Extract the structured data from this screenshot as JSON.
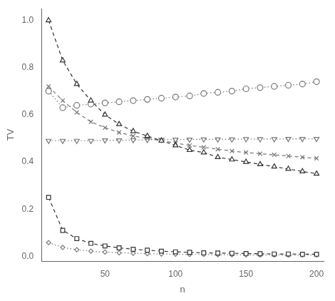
{
  "chart_data": {
    "type": "line",
    "x_label": "n",
    "y_label": "TV",
    "x": [
      10,
      20,
      30,
      40,
      50,
      60,
      70,
      80,
      90,
      100,
      110,
      120,
      130,
      140,
      150,
      160,
      170,
      180,
      190,
      200
    ],
    "series": [
      {
        "color": "#333333",
        "marker": "triangle-up",
        "line_style": "dashed",
        "values": [
          1.0,
          0.83,
          0.73,
          0.66,
          0.6,
          0.56,
          0.53,
          0.51,
          0.49,
          0.47,
          0.45,
          0.44,
          0.42,
          0.41,
          0.4,
          0.39,
          0.38,
          0.37,
          0.36,
          0.35
        ]
      },
      {
        "color": "#777777",
        "marker": "circle",
        "line_style": "dotted",
        "values": [
          0.7,
          0.63,
          0.64,
          0.645,
          0.65,
          0.655,
          0.66,
          0.665,
          0.67,
          0.675,
          0.68,
          0.69,
          0.695,
          0.7,
          0.71,
          0.715,
          0.72,
          0.725,
          0.73,
          0.74
        ]
      },
      {
        "color": "#777777",
        "marker": "cross",
        "line_style": "dashed",
        "values": [
          0.72,
          0.66,
          0.61,
          0.57,
          0.545,
          0.525,
          0.51,
          0.5,
          0.49,
          0.48,
          0.47,
          0.462,
          0.454,
          0.446,
          0.44,
          0.435,
          0.43,
          0.425,
          0.42,
          0.415
        ]
      },
      {
        "color": "#777777",
        "marker": "triangle-down",
        "line_style": "dotted",
        "values": [
          0.49,
          0.49,
          0.49,
          0.49,
          0.492,
          0.492,
          0.493,
          0.494,
          0.494,
          0.495,
          0.495,
          0.496,
          0.496,
          0.496,
          0.497,
          0.497,
          0.497,
          0.498,
          0.498,
          0.498
        ]
      },
      {
        "color": "#333333",
        "marker": "square",
        "line_style": "dashed",
        "values": [
          0.25,
          0.11,
          0.075,
          0.055,
          0.044,
          0.036,
          0.03,
          0.026,
          0.022,
          0.019,
          0.017,
          0.015,
          0.014,
          0.013,
          0.012,
          0.011,
          0.01,
          0.01,
          0.009,
          0.009
        ]
      },
      {
        "color": "#777777",
        "marker": "diamond",
        "line_style": "dotted",
        "values": [
          0.058,
          0.038,
          0.028,
          0.022,
          0.018,
          0.015,
          0.013,
          0.011,
          0.01,
          0.009,
          0.008,
          0.008,
          0.007,
          0.007,
          0.006,
          0.006,
          0.006,
          0.005,
          0.005,
          0.005
        ]
      }
    ],
    "xlim": [
      5,
      205
    ],
    "ylim": [
      -0.02,
      1.05
    ],
    "xticks": [
      50,
      100,
      150,
      200
    ],
    "yticks": [
      {
        "value": 0,
        "label": "0.0"
      },
      0.2,
      0.4,
      0.6,
      0.8,
      {
        "value": 1,
        "label": "1.0"
      }
    ],
    "grid": false
  }
}
